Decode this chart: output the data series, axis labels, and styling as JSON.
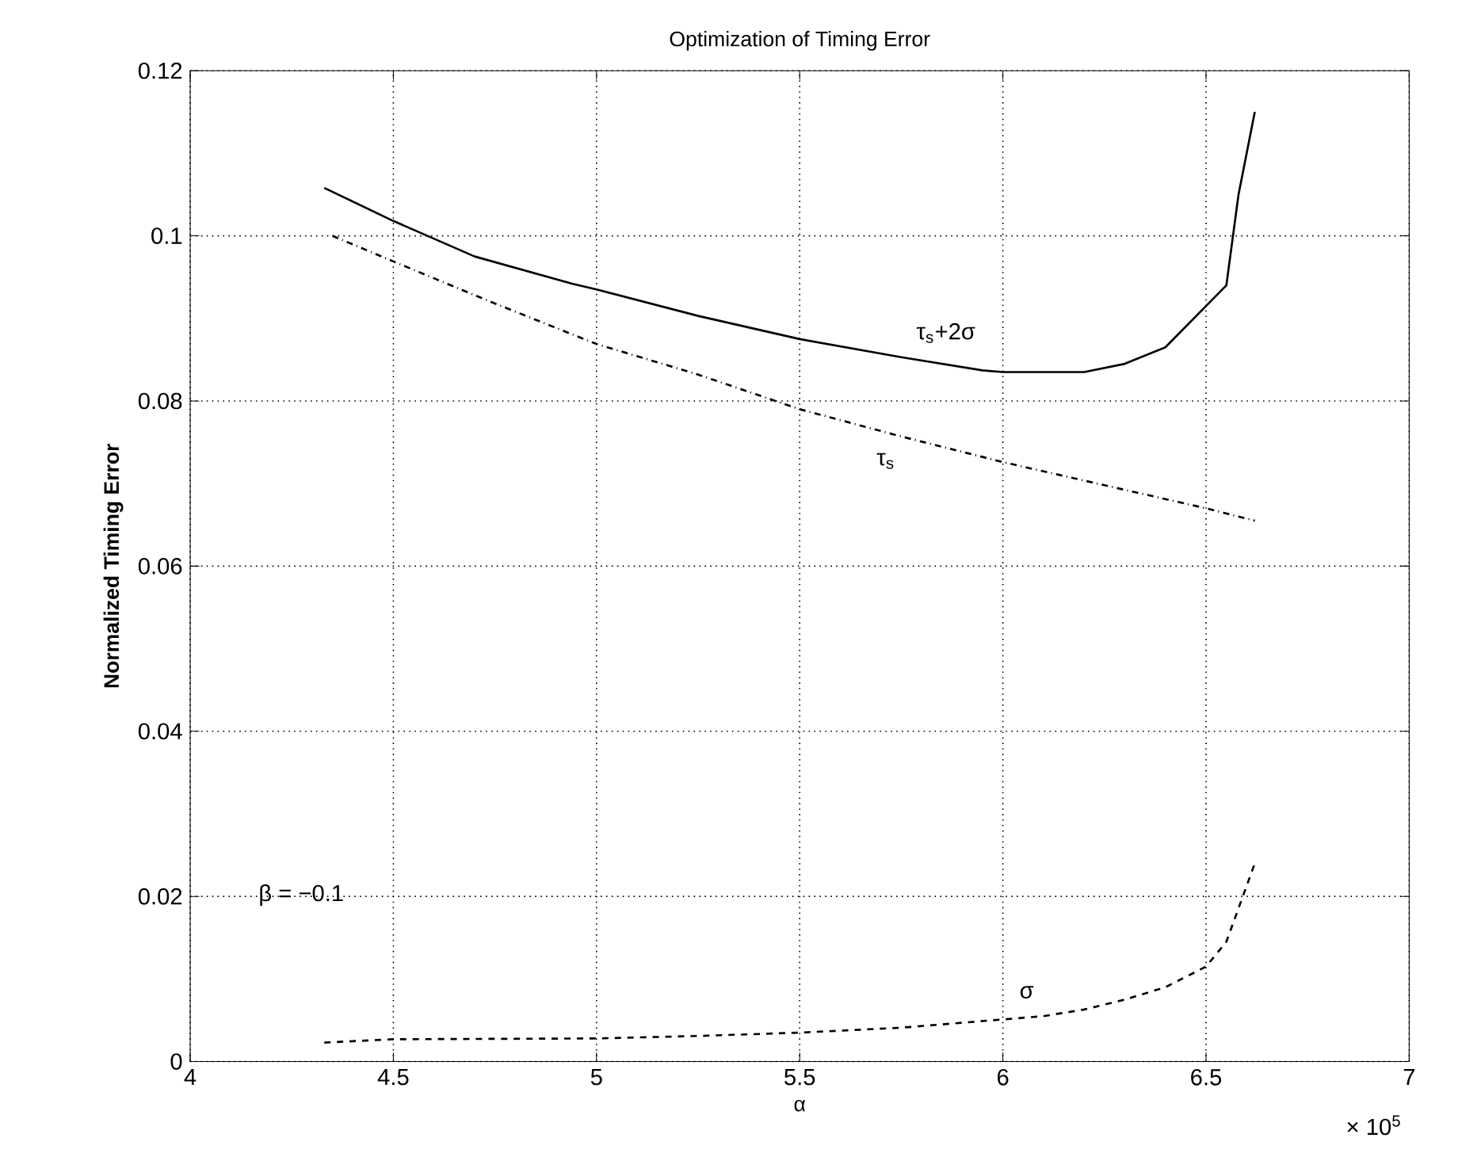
{
  "chart_data": {
    "type": "line",
    "title": "Optimization of Timing Error",
    "xlabel": "α",
    "ylabel": "Normalized Timing Error",
    "xlim": [
      4,
      7
    ],
    "xticks": [
      4,
      4.5,
      5,
      5.5,
      6,
      6.5,
      7
    ],
    "ylim": [
      0,
      0.12
    ],
    "yticks": [
      0,
      0.02,
      0.04,
      0.06,
      0.08,
      0.1,
      0.12
    ],
    "grid": true,
    "series": [
      {
        "name": "τ$_{s}$+2σ",
        "color": "#000000",
        "line_style": "solid",
        "x": [
          4.33,
          4.5,
          4.7,
          4.94,
          5.0,
          5.25,
          5.5,
          5.75,
          5.95,
          6.0,
          6.1,
          6.2,
          6.3,
          6.4,
          6.5,
          6.55,
          6.58,
          6.62
        ],
        "values": [
          0.1058,
          0.1018,
          0.0975,
          0.0942,
          0.0935,
          0.0903,
          0.0875,
          0.0853,
          0.0837,
          0.0835,
          0.0835,
          0.0835,
          0.0845,
          0.0865,
          0.0915,
          0.094,
          0.105,
          0.115
        ]
      },
      {
        "name": "τ$_{s}$",
        "color": "#000000",
        "line_style": "dashdot",
        "x": [
          4.35,
          4.5,
          4.75,
          5.0,
          5.25,
          5.5,
          5.75,
          6.0,
          6.25,
          6.5,
          6.62
        ],
        "values": [
          0.1,
          0.0969,
          0.0918,
          0.0869,
          0.0832,
          0.079,
          0.0757,
          0.0726,
          0.0698,
          0.067,
          0.0655
        ]
      },
      {
        "name": "σ",
        "color": "#000000",
        "line_style": "dashed",
        "x": [
          4.33,
          4.5,
          5.0,
          5.25,
          5.5,
          5.75,
          6.0,
          6.1,
          6.2,
          6.3,
          6.4,
          6.5,
          6.55,
          6.62
        ],
        "values": [
          0.0023,
          0.0027,
          0.0028,
          0.0031,
          0.0035,
          0.0041,
          0.0051,
          0.0055,
          0.0063,
          0.0075,
          0.009,
          0.0115,
          0.0145,
          0.024
        ]
      }
    ],
    "annotations": [
      "β = −0.1",
      "× 10$^{5}$"
    ]
  }
}
